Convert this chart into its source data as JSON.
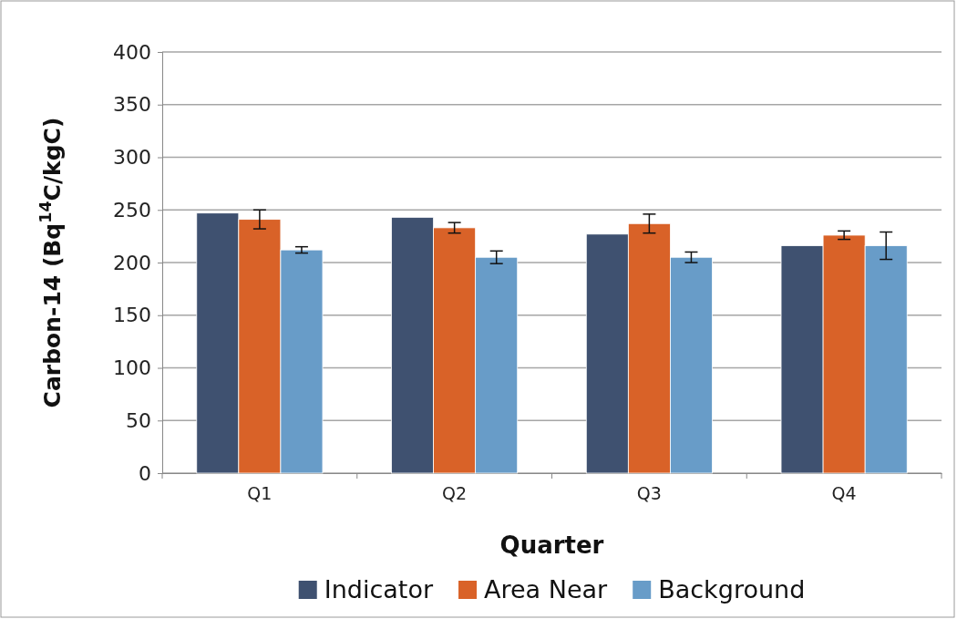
{
  "chart_data": {
    "type": "bar",
    "xlabel": "Quarter",
    "ylabel": "Carbon-14 (Bq$^{14}$C/kgC)",
    "categories": [
      "Q1",
      "Q2",
      "Q3",
      "Q4"
    ],
    "series": [
      {
        "name": "Indicator",
        "color": "#3f5170",
        "values": [
          247,
          243,
          227,
          216
        ]
      },
      {
        "name": "Area Near",
        "color": "#d96228",
        "values": [
          241,
          233,
          237,
          226
        ],
        "errors": [
          9,
          5,
          9,
          4
        ]
      },
      {
        "name": "Background",
        "color": "#689cc8",
        "values": [
          212,
          205,
          205,
          216
        ],
        "errors": [
          3,
          6,
          5,
          13
        ]
      }
    ],
    "ylim": [
      0,
      400
    ],
    "yticks": [
      0,
      50,
      100,
      150,
      200,
      250,
      300,
      350,
      400
    ],
    "grid": "y",
    "legend": "bottom"
  }
}
